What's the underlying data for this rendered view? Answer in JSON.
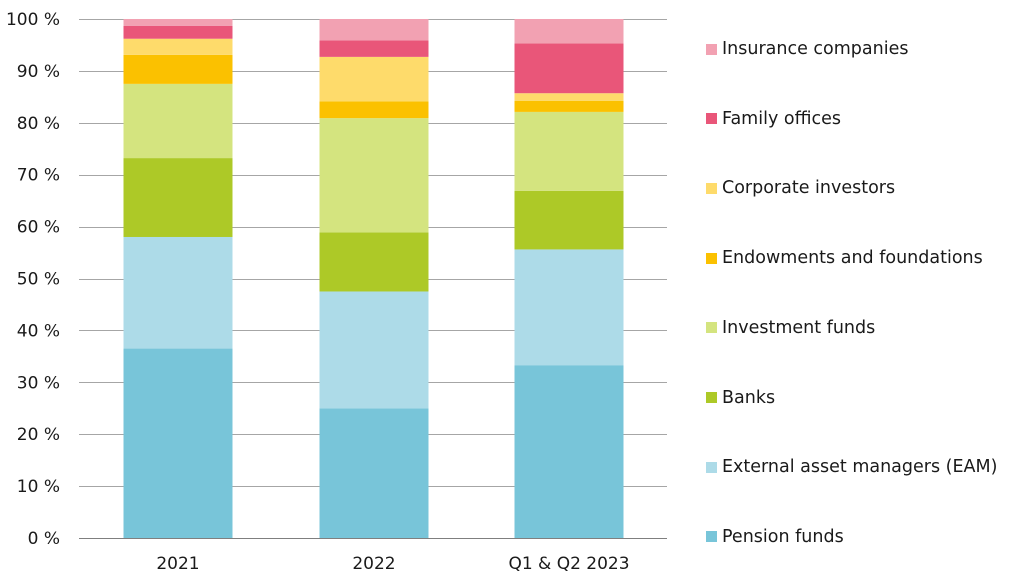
{
  "chart_data": {
    "type": "bar",
    "stacked": true,
    "categories": [
      "2021",
      "2022",
      "Q1 & Q2 2023"
    ],
    "ylim": [
      0,
      100
    ],
    "yticks": [
      0,
      10,
      20,
      30,
      40,
      50,
      60,
      70,
      80,
      90,
      100
    ],
    "ytick_labels": [
      "0 %",
      "10 %",
      "20 %",
      "30 %",
      "40 %",
      "50 %",
      "60 %",
      "70 %",
      "80 %",
      "90 %",
      "100 %"
    ],
    "grid": true,
    "legend_position": "right",
    "series": [
      {
        "name": "Pension funds",
        "color": "#78c5d9",
        "values": [
          36.5,
          25.0,
          33.3
        ]
      },
      {
        "name": "External asset managers (EAM)",
        "color": "#addbe8",
        "values": [
          21.5,
          22.5,
          22.3
        ]
      },
      {
        "name": "Banks",
        "color": "#adc927",
        "values": [
          15.2,
          11.4,
          11.3
        ]
      },
      {
        "name": "Investment funds",
        "color": "#d4e47f",
        "values": [
          14.3,
          22.0,
          15.2
        ]
      },
      {
        "name": "Endowments and foundations",
        "color": "#fbc100",
        "values": [
          5.6,
          3.2,
          2.1
        ]
      },
      {
        "name": "Corporate investors",
        "color": "#fedb6b",
        "values": [
          3.1,
          8.6,
          1.5
        ]
      },
      {
        "name": "Family offices",
        "color": "#e95679",
        "values": [
          2.5,
          3.2,
          9.6
        ]
      },
      {
        "name": "Insurance companies",
        "color": "#f2a1b2",
        "values": [
          1.3,
          4.1,
          4.7
        ]
      }
    ]
  }
}
